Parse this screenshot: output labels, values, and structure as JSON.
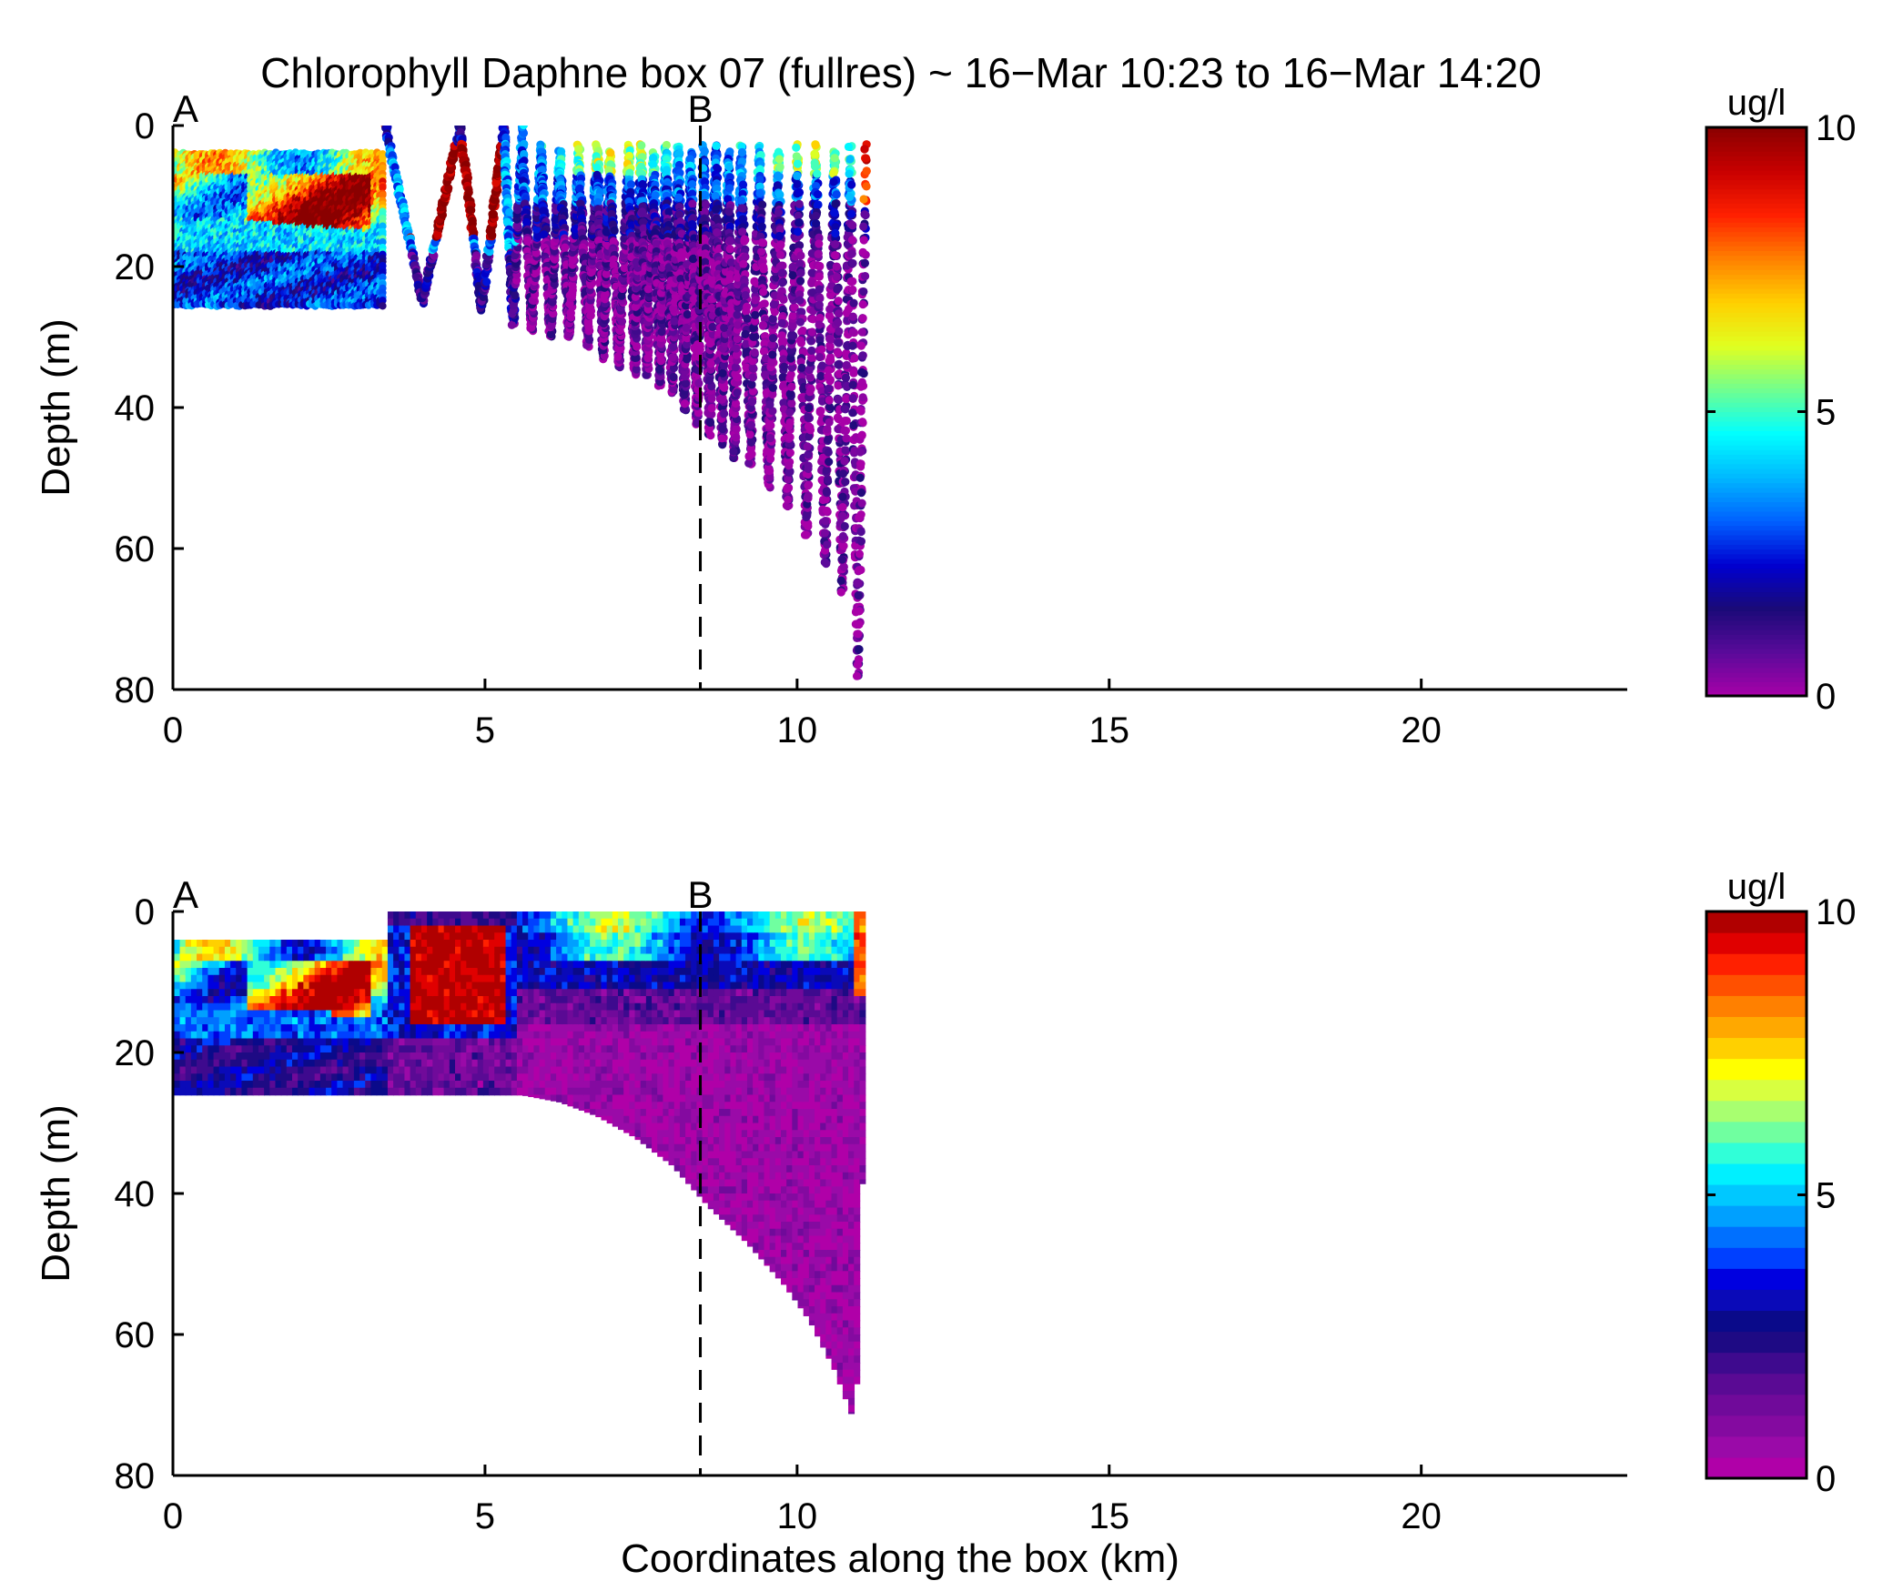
{
  "title": "Chlorophyll Daphne box 07 (fullres) ~ 16−Mar 10:23 to 16−Mar 14:20",
  "colors": {
    "colormap_top": [
      "#a800a8",
      "#5a0a9a",
      "#1a0a78",
      "#0000d0",
      "#0060ff",
      "#00b8ff",
      "#00ffff",
      "#70ff90",
      "#e0ff20",
      "#ffd000",
      "#ff8000",
      "#ff2000",
      "#c80000",
      "#8a0000"
    ],
    "colormap_bottom_levels": [
      "#b000a8",
      "#9a0aa8",
      "#840aa0",
      "#700a9a",
      "#5a0a94",
      "#3e0a8e",
      "#1e0a84",
      "#0a0a8a",
      "#0a0ab8",
      "#0000e0",
      "#0040ff",
      "#0070ff",
      "#00a0ff",
      "#00c8ff",
      "#00f0ff",
      "#30ffd8",
      "#70ffa0",
      "#a8ff70",
      "#d8ff40",
      "#ffff00",
      "#ffd000",
      "#ffa800",
      "#ff8000",
      "#ff5000",
      "#ff2000",
      "#e00000",
      "#b00000"
    ],
    "dashed_line": "#000000"
  },
  "chart_data": [
    {
      "name": "top-scatter",
      "type": "scatter",
      "xlabel": "",
      "ylabel": "Depth (m)",
      "xlim": [
        0,
        23.3
      ],
      "ylim": [
        80,
        0
      ],
      "xticks": [
        0,
        5,
        10,
        15,
        20
      ],
      "yticks": [
        0,
        20,
        40,
        60,
        80
      ],
      "colorbar": {
        "label": "ug/l",
        "range": [
          0,
          10
        ],
        "ticks": [
          0,
          5,
          10
        ],
        "style": "continuous"
      },
      "markers": [
        {
          "label": "A",
          "x": 0
        },
        {
          "label": "B",
          "x": 8.45
        }
      ],
      "profile_x_km": [
        3.4,
        4.6,
        5.3,
        5.6,
        5.9,
        6.2,
        6.5,
        6.8,
        7.0,
        7.3,
        7.5,
        7.7,
        7.9,
        8.1,
        8.3,
        8.5,
        8.7,
        8.9,
        9.1,
        9.4,
        9.7,
        10.0,
        10.3,
        10.6,
        10.85,
        11.1
      ],
      "profile_max_depth_m": [
        25,
        26,
        28,
        29,
        30,
        30,
        31,
        33,
        34,
        35,
        35,
        37,
        38,
        40,
        42,
        44,
        45,
        47,
        48,
        51,
        54,
        58,
        62,
        66,
        78,
        12
      ],
      "surface_rows_depth_m": [
        4,
        26
      ],
      "surface_rows_x_km": [
        0,
        3.4
      ],
      "chlorophyll_features": [
        {
          "x_km": [
            3.9,
            5.2
          ],
          "depth_m": [
            2,
            16
          ],
          "ug_l": 10
        },
        {
          "x_km": [
            1.5,
            3.4
          ],
          "depth_m": [
            5,
            14
          ],
          "ug_l": 8
        },
        {
          "x_km": [
            0,
            3.4
          ],
          "depth_m": [
            16,
            26
          ],
          "ug_l": 2.5
        },
        {
          "x_km": [
            5.5,
            11.1
          ],
          "depth_m": [
            15,
            78
          ],
          "ug_l": 0.3
        }
      ]
    },
    {
      "name": "bottom-contour",
      "type": "heatmap",
      "xlabel": "Coordinates along the box (km)",
      "ylabel": "Depth (m)",
      "xlim": [
        0,
        23.3
      ],
      "ylim": [
        80,
        0
      ],
      "xticks": [
        0,
        5,
        10,
        15,
        20
      ],
      "yticks": [
        0,
        20,
        40,
        60,
        80
      ],
      "colorbar": {
        "label": "ug/l",
        "range": [
          0,
          10
        ],
        "ticks": [
          0,
          5,
          10
        ],
        "style": "discrete"
      },
      "markers": [
        {
          "label": "A",
          "x": 0
        },
        {
          "label": "B",
          "x": 8.45
        }
      ],
      "data_region_top_depth_m": [
        [
          0,
          4
        ],
        [
          3.4,
          4
        ],
        [
          3.4,
          0
        ],
        [
          11.2,
          0
        ]
      ],
      "data_region_bottom_depth_m": [
        [
          0,
          26
        ],
        [
          5.6,
          26
        ],
        [
          6.2,
          27
        ],
        [
          6.8,
          29
        ],
        [
          7.4,
          32
        ],
        [
          8.0,
          36
        ],
        [
          8.6,
          42
        ],
        [
          9.2,
          47
        ],
        [
          9.8,
          53
        ],
        [
          10.2,
          58
        ],
        [
          10.6,
          65
        ],
        [
          10.9,
          72
        ],
        [
          10.9,
          78
        ],
        [
          10.92,
          78
        ],
        [
          11.05,
          37
        ],
        [
          11.1,
          0
        ]
      ]
    }
  ]
}
